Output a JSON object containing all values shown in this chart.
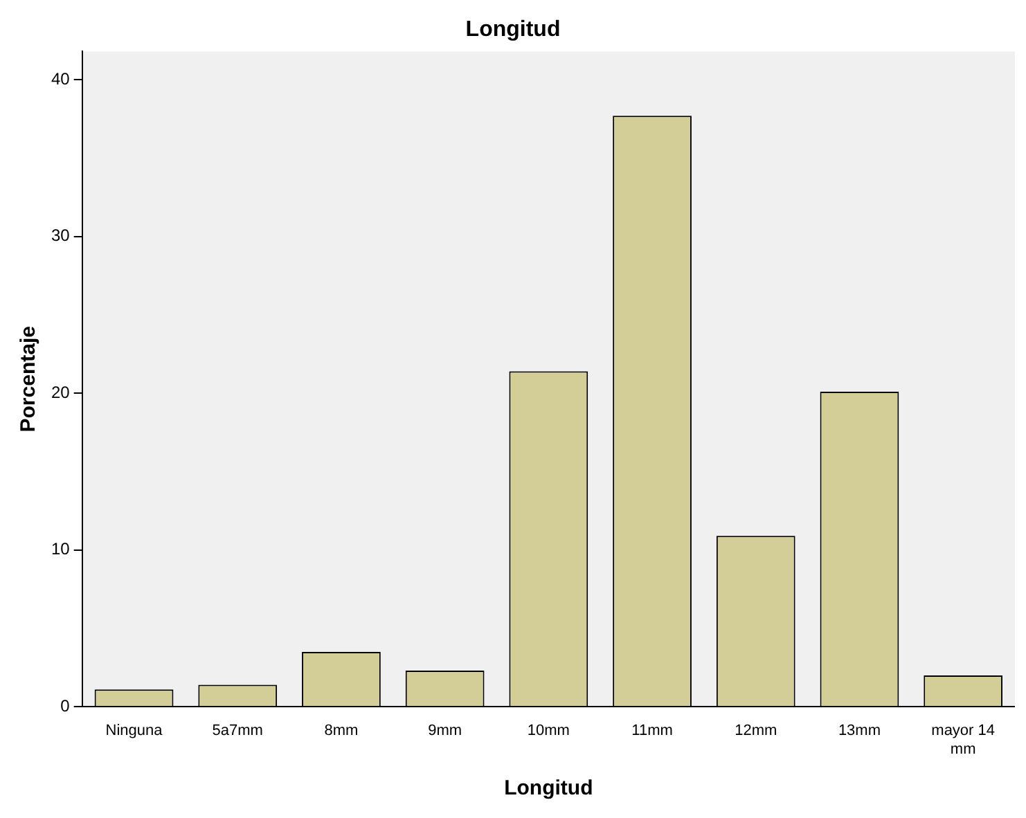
{
  "chart_data": {
    "type": "bar",
    "title": "Longitud",
    "xlabel": "Longitud",
    "ylabel": "Porcentaje",
    "categories": [
      "Ninguna",
      "5a7mm",
      "8mm",
      "9mm",
      "10mm",
      "11mm",
      "12mm",
      "13mm",
      "mayor 14 mm"
    ],
    "values": [
      1.1,
      1.4,
      3.5,
      2.3,
      21.4,
      37.7,
      10.9,
      20.1,
      2.0
    ],
    "color": "#d3ce97",
    "ylim": [
      0,
      41.8
    ],
    "yticks": [
      0,
      10,
      20,
      30,
      40
    ],
    "grid": false,
    "legend": false
  }
}
